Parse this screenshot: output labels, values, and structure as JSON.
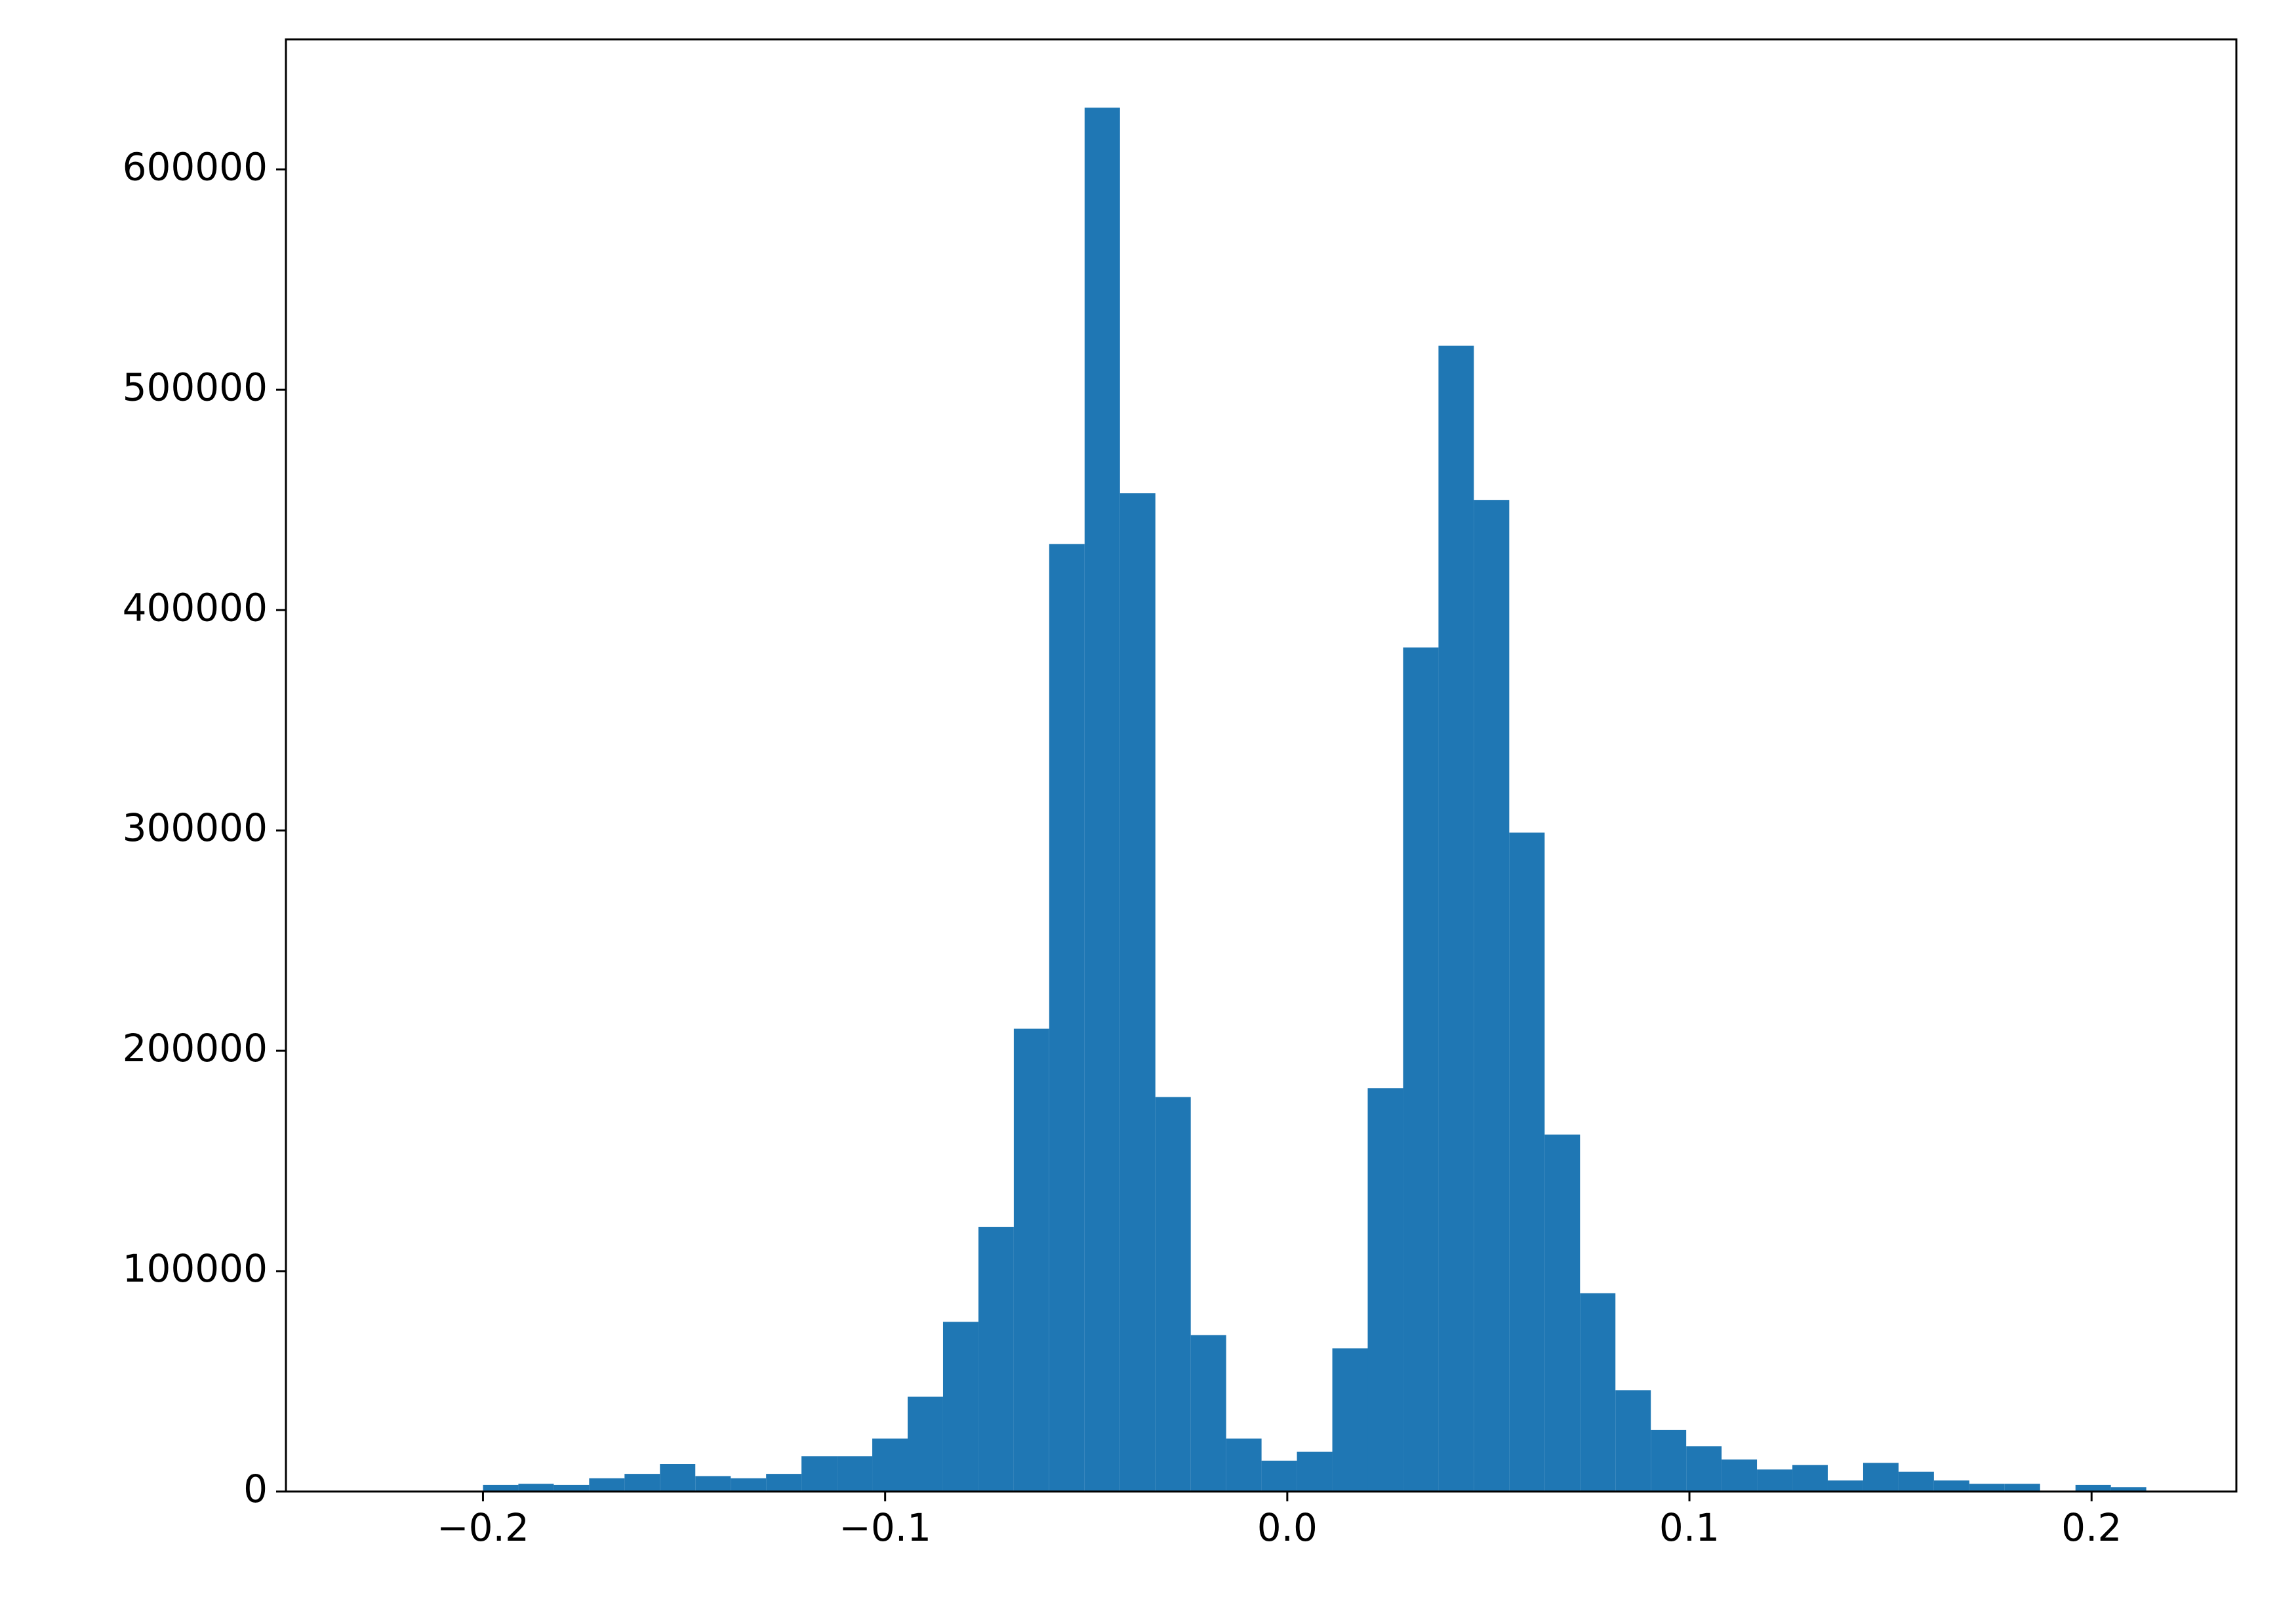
{
  "chart_data": {
    "type": "histogram",
    "color": "#1f77b4",
    "bins": [
      -0.2,
      -0.1912,
      -0.1824,
      -0.1736,
      -0.1648,
      -0.156,
      -0.1472,
      -0.1384,
      -0.1296,
      -0.1208,
      -0.112,
      -0.1032,
      -0.0944,
      -0.0856,
      -0.0768,
      -0.068,
      -0.0592,
      -0.0504,
      -0.0416,
      -0.0328,
      -0.024,
      -0.0152,
      -0.0064,
      0.0024,
      0.0112,
      0.02,
      0.0288,
      0.0376,
      0.0464,
      0.0552,
      0.064,
      0.0728,
      0.0816,
      0.0904,
      0.0992,
      0.108,
      0.1168,
      0.1256,
      0.1344,
      0.1432,
      0.152,
      0.1608,
      0.1696,
      0.1784,
      0.1872,
      0.196,
      0.2048,
      0.2136
    ],
    "counts": [
      3000,
      3500,
      3000,
      6000,
      8000,
      12500,
      7000,
      6000,
      8000,
      16000,
      16000,
      24000,
      43000,
      77000,
      120000,
      210000,
      430000,
      628000,
      453000,
      179000,
      71000,
      24000,
      14000,
      18000,
      65000,
      183000,
      383000,
      520000,
      450000,
      299000,
      162000,
      90000,
      46000,
      28000,
      20500,
      14500,
      10000,
      12000,
      5000,
      13000,
      9000,
      5000,
      3500,
      3500,
      0,
      3000,
      2000
    ],
    "xlim": [
      -0.249,
      0.236
    ],
    "ylim": [
      0,
      659000
    ],
    "xticks": [
      {
        "value": -0.2,
        "label": "−0.2"
      },
      {
        "value": -0.1,
        "label": "−0.1"
      },
      {
        "value": 0.0,
        "label": "0.0"
      },
      0.1,
      0.2
    ],
    "yticks": [
      0,
      100000,
      200000,
      300000,
      400000,
      500000,
      600000
    ]
  }
}
